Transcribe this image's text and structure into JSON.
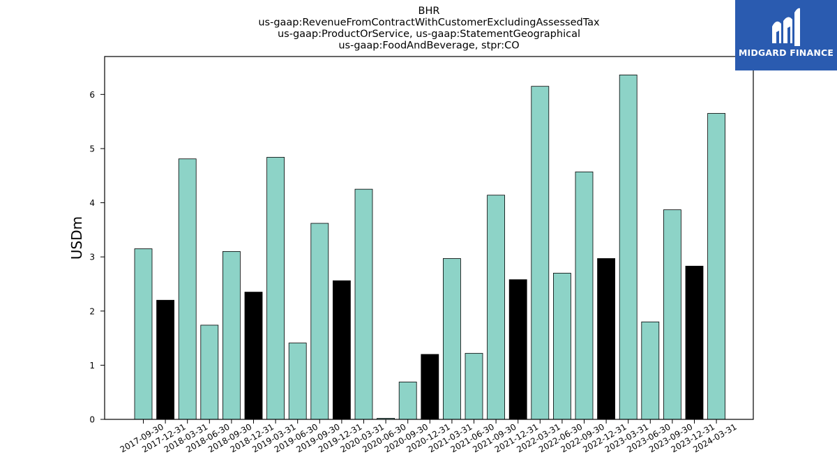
{
  "chart_data": {
    "type": "bar",
    "title_lines": [
      "BHR",
      "us-gaap:RevenueFromContractWithCustomerExcludingAssessedTax",
      "us-gaap:ProductOrService, us-gaap:StatementGeographical",
      "us-gaap:FoodAndBeverage, stpr:CO"
    ],
    "xlabel": "",
    "ylabel": "USDm",
    "ylim": [
      0,
      6.7
    ],
    "yticks": [
      0,
      1,
      2,
      3,
      4,
      5,
      6
    ],
    "grid": false,
    "colors": {
      "quarter": "#8dd3c7",
      "year_end": "#000000",
      "edge": "#000000"
    },
    "categories": [
      "2017-09-30",
      "2017-12-31",
      "2018-03-31",
      "2018-06-30",
      "2018-09-30",
      "2018-12-31",
      "2019-03-31",
      "2019-06-30",
      "2019-09-30",
      "2019-12-31",
      "2020-03-31",
      "2020-06-30",
      "2020-09-30",
      "2020-12-31",
      "2021-03-31",
      "2021-06-30",
      "2021-09-30",
      "2021-12-31",
      "2022-03-31",
      "2022-06-30",
      "2022-09-30",
      "2022-12-31",
      "2023-03-31",
      "2023-06-30",
      "2023-09-30",
      "2023-12-31",
      "2024-03-31"
    ],
    "values": [
      3.15,
      2.2,
      4.81,
      1.74,
      3.1,
      2.35,
      4.84,
      1.41,
      3.62,
      2.56,
      4.25,
      0.02,
      0.69,
      1.2,
      2.97,
      1.22,
      4.14,
      2.58,
      6.15,
      2.7,
      4.57,
      2.97,
      6.36,
      1.8,
      3.87,
      2.83,
      5.65
    ]
  },
  "logo": {
    "text": "MIDGARD FINANCE",
    "icon": "midgard-logo-icon",
    "background": "#2a5bb0"
  }
}
